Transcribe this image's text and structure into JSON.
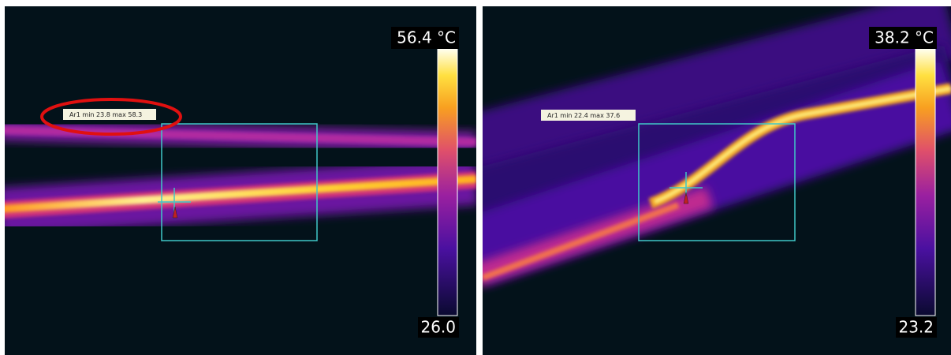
{
  "panels": [
    {
      "scale_max": "56.4 °C",
      "scale_min": "26.0",
      "area_label": "Ar1 min 23.8 max 58.3"
    },
    {
      "scale_max": "38.2 °C",
      "scale_min": "23.2",
      "area_label": "Ar1 min 22.4 max 37.6"
    }
  ]
}
